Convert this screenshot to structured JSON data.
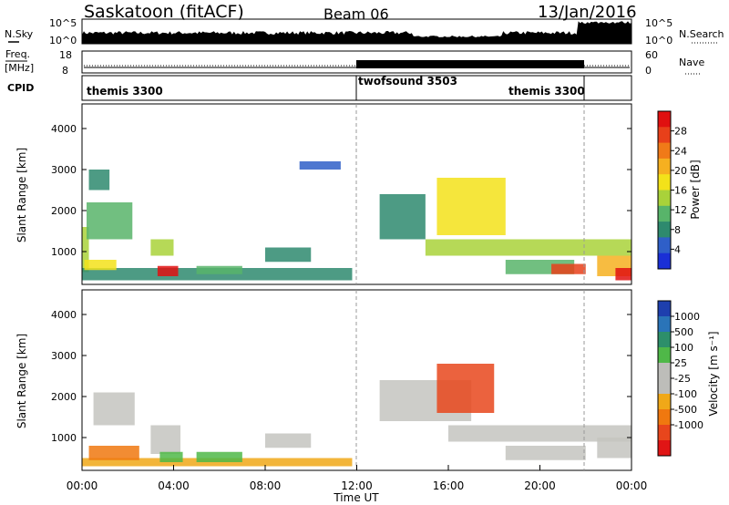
{
  "header": {
    "station": "Saskatoon (fitACF)",
    "beam": "Beam 06",
    "date": "13/Jan/2016"
  },
  "strips": {
    "nsky_label": "N.Sky",
    "nsky_ticks": [
      "10^5",
      "10^0"
    ],
    "nsearch_label": "N.Search",
    "nsearch_ticks": [
      "10^5",
      "10^0"
    ],
    "freq_label": "Freq.",
    "freq_unit": "[MHz]",
    "freq_ticks": [
      "18",
      "8"
    ],
    "nave_label": "Nave",
    "nave_ticks": [
      "60",
      "0"
    ],
    "cpid_label": "CPID",
    "cpid_segments": [
      {
        "name": "themis 3300",
        "start_h": 0,
        "end_h": 12
      },
      {
        "name": "twofsound 3503",
        "start_h": 12,
        "end_h": 21.9
      },
      {
        "name": "themis 3300",
        "start_h": 21.9,
        "end_h": 24
      }
    ]
  },
  "colors": {
    "power": [
      "#1a2fd6",
      "#2f5fc8",
      "#2e8a6e",
      "#58b46a",
      "#a9d23a",
      "#f3e21a",
      "#f6b020",
      "#f07a18",
      "#e8401a",
      "#e01010"
    ],
    "velocity": [
      "#1e3fae",
      "#2a74b8",
      "#2d8f6a",
      "#4fb848",
      "#bdbdb9",
      "#bdbdb9",
      "#f0a818",
      "#f0780f",
      "#e8461c",
      "#e01515"
    ],
    "scatter_gray": "#c4c4c0"
  },
  "chart_data": [
    {
      "type": "heatmap",
      "name": "power",
      "ylabel": "Slant Range [km]",
      "y_ticks": [
        "1000",
        "2000",
        "3000",
        "4000"
      ],
      "ylim": [
        200,
        4600
      ],
      "xlim": [
        0,
        24
      ],
      "colorbar_label": "Power [dB]",
      "colorbar_ticks": [
        "4",
        "8",
        "12",
        "16",
        "20",
        "24",
        "28"
      ],
      "colorbar_range": [
        0,
        32
      ],
      "regions": [
        {
          "t0": 0.0,
          "t1": 0.3,
          "r0": 500,
          "r1": 1600,
          "v": 14
        },
        {
          "t0": 0.0,
          "t1": 11.8,
          "r0": 300,
          "r1": 600,
          "v": 8
        },
        {
          "t0": 0.1,
          "t1": 1.5,
          "r0": 550,
          "r1": 800,
          "v": 17
        },
        {
          "t0": 0.2,
          "t1": 2.2,
          "r0": 1300,
          "r1": 2200,
          "v": 12
        },
        {
          "t0": 0.3,
          "t1": 1.2,
          "r0": 2500,
          "r1": 3000,
          "v": 9
        },
        {
          "t0": 3.0,
          "t1": 4.0,
          "r0": 900,
          "r1": 1300,
          "v": 13
        },
        {
          "t0": 3.3,
          "t1": 4.2,
          "r0": 400,
          "r1": 650,
          "v": 29
        },
        {
          "t0": 5.0,
          "t1": 7.0,
          "r0": 450,
          "r1": 650,
          "v": 10
        },
        {
          "t0": 8.0,
          "t1": 10.0,
          "r0": 750,
          "r1": 1100,
          "v": 8
        },
        {
          "t0": 9.5,
          "t1": 11.3,
          "r0": 3000,
          "r1": 3200,
          "v": 6
        },
        {
          "t0": 13.0,
          "t1": 15.0,
          "r0": 1300,
          "r1": 2400,
          "v": 7
        },
        {
          "t0": 15.5,
          "t1": 18.5,
          "r0": 1400,
          "r1": 2800,
          "v": 16
        },
        {
          "t0": 15.0,
          "t1": 24.0,
          "r0": 900,
          "r1": 1300,
          "v": 13
        },
        {
          "t0": 18.5,
          "t1": 21.5,
          "r0": 450,
          "r1": 800,
          "v": 10
        },
        {
          "t0": 20.5,
          "t1": 22.0,
          "r0": 450,
          "r1": 700,
          "v": 27
        },
        {
          "t0": 22.5,
          "t1": 24.0,
          "r0": 400,
          "r1": 900,
          "v": 22
        },
        {
          "t0": 23.3,
          "t1": 24.0,
          "r0": 300,
          "r1": 600,
          "v": 30
        }
      ]
    },
    {
      "type": "heatmap",
      "name": "velocity",
      "ylabel": "Slant Range [km]",
      "xlabel": "Time UT",
      "y_ticks": [
        "1000",
        "2000",
        "3000",
        "4000"
      ],
      "ylim": [
        200,
        4600
      ],
      "xlim": [
        0,
        24
      ],
      "x_ticks": [
        "00:00",
        "04:00",
        "08:00",
        "12:00",
        "16:00",
        "20:00",
        "00:00"
      ],
      "colorbar_label": "Velocity [m s⁻¹]",
      "colorbar_ticks": [
        "1000",
        "500",
        "100",
        "25",
        "-25",
        "-100",
        "-500",
        "-1000"
      ],
      "regions": [
        {
          "t0": 0.0,
          "t1": 11.8,
          "r0": 300,
          "r1": 500,
          "v": -100
        },
        {
          "t0": 0.3,
          "t1": 2.5,
          "r0": 450,
          "r1": 800,
          "v": -300
        },
        {
          "t0": 0.5,
          "t1": 2.3,
          "r0": 1300,
          "r1": 2100,
          "v": 0
        },
        {
          "t0": 3.0,
          "t1": 4.3,
          "r0": 600,
          "r1": 1300,
          "v": 0
        },
        {
          "t0": 3.4,
          "t1": 4.4,
          "r0": 400,
          "r1": 650,
          "v": 80
        },
        {
          "t0": 5.0,
          "t1": 7.0,
          "r0": 400,
          "r1": 650,
          "v": 60
        },
        {
          "t0": 8.0,
          "t1": 10.0,
          "r0": 750,
          "r1": 1100,
          "v": 0
        },
        {
          "t0": 13.0,
          "t1": 17.0,
          "r0": 1400,
          "r1": 2400,
          "v": 0
        },
        {
          "t0": 15.5,
          "t1": 18.0,
          "r0": 1600,
          "r1": 2800,
          "v": -600
        },
        {
          "t0": 16.0,
          "t1": 24.0,
          "r0": 900,
          "r1": 1300,
          "v": 0
        },
        {
          "t0": 18.5,
          "t1": 22.0,
          "r0": 450,
          "r1": 800,
          "v": 0
        },
        {
          "t0": 22.5,
          "t1": 24.0,
          "r0": 500,
          "r1": 1000,
          "v": 0
        }
      ]
    }
  ]
}
